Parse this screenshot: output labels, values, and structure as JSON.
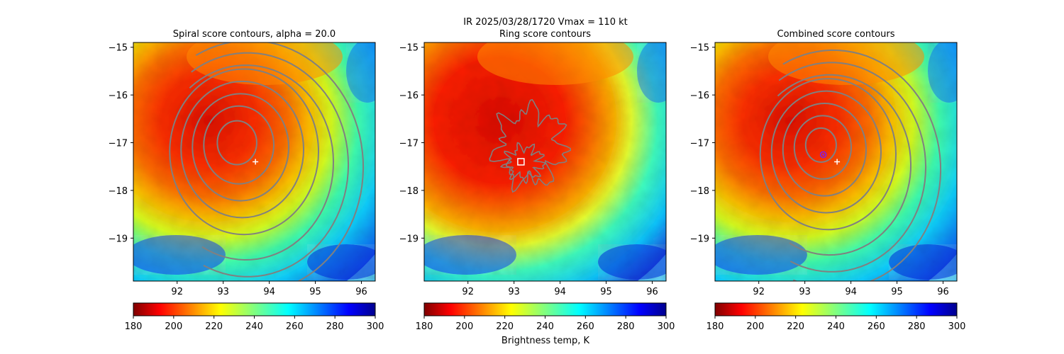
{
  "figure": {
    "suptitle_line1": "IR  2025/03/28/1720    Vmax = 110 kt",
    "colorbar_label": "Brightness temp, K"
  },
  "colors": {
    "contour": "#808080",
    "marker": "#ffffff",
    "combined_marker": "#8a1fd1"
  },
  "chart_data": [
    {
      "type": "heatmap",
      "title": "Spiral score contours, alpha = 20.0",
      "xlim": [
        91.05,
        96.3
      ],
      "ylim": [
        -19.9,
        -14.9
      ],
      "xticks": [
        92,
        93,
        94,
        95,
        96
      ],
      "yticks": [
        -15,
        -16,
        -17,
        -18,
        -19
      ],
      "storm_center": {
        "lon": 93.3,
        "lat": -17.1
      },
      "contour_center": {
        "lon": 93.3,
        "lat": -17.0
      },
      "contour_radii_deg": [
        0.45,
        0.8,
        1.1,
        1.4,
        1.7,
        2.0,
        2.3,
        2.6
      ],
      "marker": {
        "type": "plus",
        "lon": 93.7,
        "lat": -17.4
      },
      "colorbar": {
        "range": [
          180,
          300
        ],
        "ticks": [
          180,
          200,
          220,
          240,
          260,
          280,
          300
        ],
        "cmap": "jet_r"
      }
    },
    {
      "type": "heatmap",
      "title": "Ring score contours",
      "xlim": [
        91.05,
        96.3
      ],
      "ylim": [
        -19.9,
        -14.9
      ],
      "xticks": [
        92,
        93,
        94,
        95,
        96
      ],
      "yticks": [
        -15,
        -16,
        -17,
        -18,
        -19
      ],
      "storm_center": {
        "lon": 93.3,
        "lat": -17.1
      },
      "ring_region": {
        "lon": 93.2,
        "lat": -17.3
      },
      "marker": {
        "type": "square",
        "lon": 93.15,
        "lat": -17.4
      },
      "colorbar": {
        "range": [
          180,
          300
        ],
        "ticks": [
          180,
          200,
          220,
          240,
          260,
          280,
          300
        ],
        "cmap": "jet_r"
      }
    },
    {
      "type": "heatmap",
      "title": "Combined score contours",
      "xlim": [
        91.05,
        96.3
      ],
      "ylim": [
        -19.9,
        -14.9
      ],
      "xticks": [
        92,
        93,
        94,
        95,
        96
      ],
      "yticks": [
        -15,
        -16,
        -17,
        -18,
        -19
      ],
      "storm_center": {
        "lon": 93.3,
        "lat": -17.1
      },
      "contour_center": {
        "lon": 93.35,
        "lat": -17.05
      },
      "contour_radii_deg": [
        0.35,
        0.65,
        0.95,
        1.25,
        1.55,
        1.85,
        2.15,
        2.45
      ],
      "marker": {
        "type": "plus",
        "lon": 93.7,
        "lat": -17.4
      },
      "secondary_marker": {
        "type": "circle",
        "lon": 93.4,
        "lat": -17.25
      },
      "colorbar": {
        "range": [
          180,
          300
        ],
        "ticks": [
          180,
          200,
          220,
          240,
          260,
          280,
          300
        ],
        "cmap": "jet_r"
      }
    }
  ]
}
